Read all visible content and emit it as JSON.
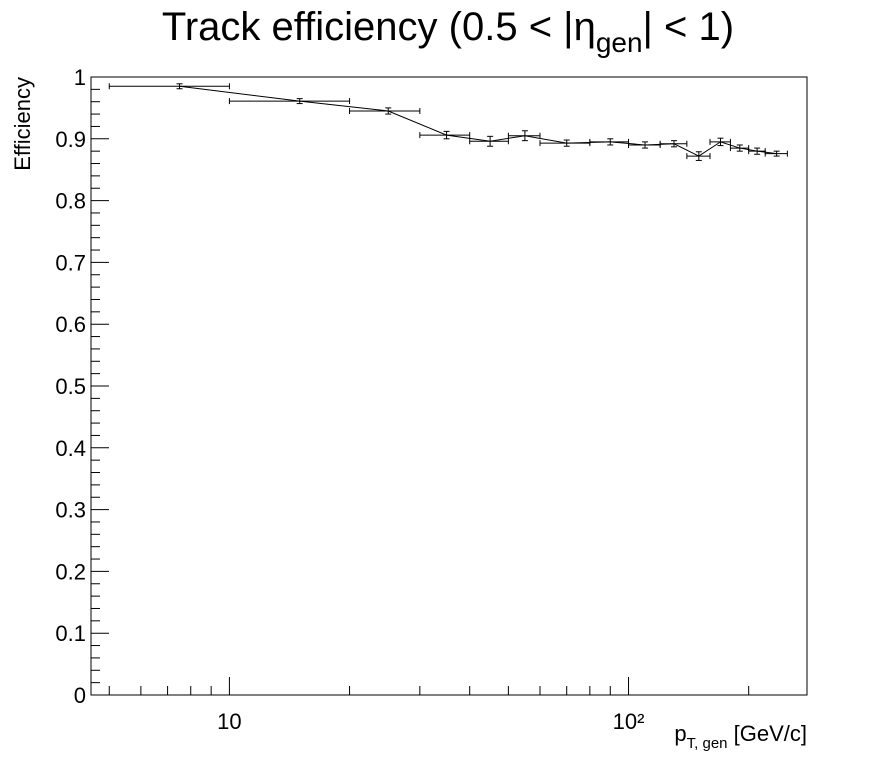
{
  "chart_data": {
    "type": "errorbar",
    "title_parts": [
      "Track efficiency (0.5 < |η",
      "gen",
      "| < 1)"
    ],
    "x_label_parts": [
      "p",
      "T, gen",
      " [GeV/c]"
    ],
    "y_label": "Efficiency",
    "xlog": true,
    "xlim": [
      4.5,
      280
    ],
    "ylim": [
      0,
      1
    ],
    "xticks": [
      {
        "value": 10,
        "label": "10"
      },
      {
        "value": 100,
        "label": "10²"
      }
    ],
    "yticks": [
      0,
      0.1,
      0.2,
      0.3,
      0.4,
      0.5,
      0.6,
      0.7,
      0.8,
      0.9,
      1
    ],
    "series": [
      {
        "color": "#000000",
        "x": [
          7.5,
          15,
          25,
          35,
          45,
          55,
          70,
          90,
          110,
          130,
          150,
          170,
          190,
          210,
          235
        ],
        "xerr": [
          2.5,
          5,
          5,
          5,
          5,
          5,
          10,
          10,
          10,
          10,
          10,
          10,
          10,
          10,
          15
        ],
        "values": [
          0.985,
          0.961,
          0.945,
          0.906,
          0.896,
          0.905,
          0.893,
          0.895,
          0.89,
          0.892,
          0.872,
          0.895,
          0.885,
          0.88,
          0.876
        ],
        "yerr": [
          0.004,
          0.004,
          0.005,
          0.006,
          0.008,
          0.008,
          0.005,
          0.005,
          0.005,
          0.005,
          0.007,
          0.006,
          0.005,
          0.005,
          0.004
        ]
      }
    ]
  }
}
